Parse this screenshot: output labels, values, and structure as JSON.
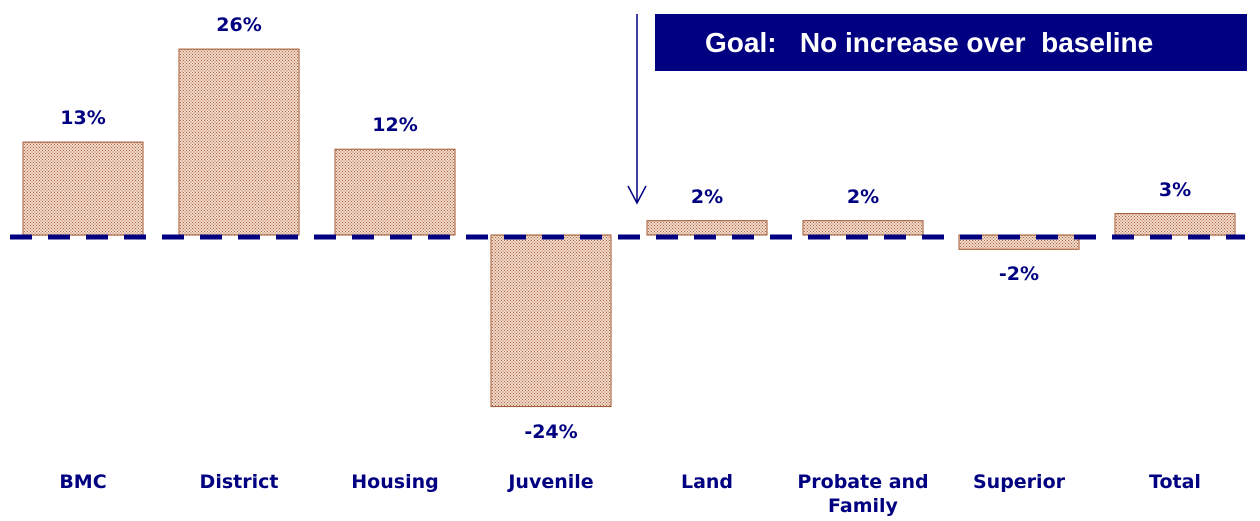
{
  "goal_label": "Goal:   No increase over  baseline",
  "colors": {
    "navy": "#000080",
    "bar_fill": "#f3d9c8",
    "bar_dots": "#a9694c",
    "bar_stroke": "#a0522d"
  },
  "chart_data": {
    "type": "bar",
    "categories": [
      "BMC",
      "District",
      "Housing",
      "Juvenile",
      "Land",
      "Probate and Family",
      "Superior",
      "Total"
    ],
    "values": [
      13,
      26,
      12,
      -24,
      2,
      2,
      -2,
      3
    ],
    "value_labels": [
      "13%",
      "26%",
      "12%",
      "-24%",
      "2%",
      "2%",
      "-2%",
      "3%"
    ],
    "baseline": 0,
    "ylim": [
      -28,
      30
    ],
    "grid": false,
    "legend": "none",
    "annotations": [
      "Goal:   No increase over  baseline"
    ]
  }
}
